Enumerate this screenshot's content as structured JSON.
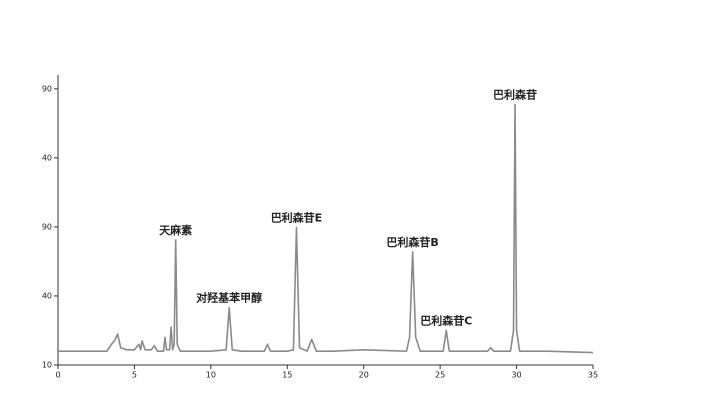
{
  "chart_data": {
    "type": "line",
    "x": [
      0,
      3.2,
      3.5,
      3.7,
      3.9,
      4.1,
      4.5,
      5.0,
      5.3,
      5.4,
      5.5,
      5.7,
      6.1,
      6.3,
      6.5,
      6.9,
      7.0,
      7.1,
      7.3,
      7.4,
      7.5,
      7.6,
      7.7,
      7.8,
      8.0,
      9,
      10,
      11.0,
      11.2,
      11.4,
      12,
      13.5,
      13.7,
      13.9,
      15.0,
      15.4,
      15.6,
      15.8,
      16.3,
      16.6,
      16.9,
      18,
      20,
      22.8,
      23.0,
      23.2,
      23.4,
      23.7,
      25.2,
      25.4,
      25.6,
      28.1,
      28.3,
      28.5,
      29.6,
      29.8,
      29.9,
      30.0,
      30.2,
      32,
      35
    ],
    "values": [
      0.2,
      0.2,
      0.3,
      0.35,
      0.45,
      0.25,
      0.22,
      0.22,
      0.3,
      0.22,
      0.35,
      0.22,
      0.22,
      0.28,
      0.2,
      0.2,
      0.4,
      0.22,
      0.22,
      0.55,
      0.22,
      0.3,
      1.81,
      0.3,
      0.2,
      0.2,
      0.2,
      0.22,
      0.83,
      0.22,
      0.2,
      0.2,
      0.3,
      0.2,
      0.2,
      0.22,
      1.99,
      0.25,
      0.2,
      0.37,
      0.2,
      0.2,
      0.22,
      0.2,
      0.4,
      1.64,
      0.4,
      0.2,
      0.2,
      0.5,
      0.2,
      0.2,
      0.25,
      0.2,
      0.2,
      0.5,
      3.77,
      0.5,
      0.2,
      0.2,
      0.18
    ],
    "color": "#8a8a8a",
    "xlim": [
      0,
      35
    ],
    "xticks": [
      0,
      5,
      10,
      15,
      20,
      25,
      30,
      35
    ],
    "ylim": [
      0,
      4.2
    ],
    "yticks": [
      {
        "value": 0,
        "label": "10"
      },
      {
        "value": 1,
        "label": "40"
      },
      {
        "value": 2,
        "label": "90"
      },
      {
        "value": 3,
        "label": "40"
      },
      {
        "value": 4,
        "label": "90"
      }
    ],
    "annotations": [
      {
        "text": "天麻素",
        "x": 7.7,
        "y": 1.81
      },
      {
        "text": "对羟基苯甲醇",
        "x": 11.2,
        "y": 0.83
      },
      {
        "text": "巴利森苷E",
        "x": 15.6,
        "y": 1.99
      },
      {
        "text": "巴利森苷B",
        "x": 23.2,
        "y": 1.64
      },
      {
        "text": "巴利森苷C",
        "x": 25.4,
        "y": 0.5
      },
      {
        "text": "巴利森苷",
        "x": 29.9,
        "y": 3.77
      }
    ]
  }
}
